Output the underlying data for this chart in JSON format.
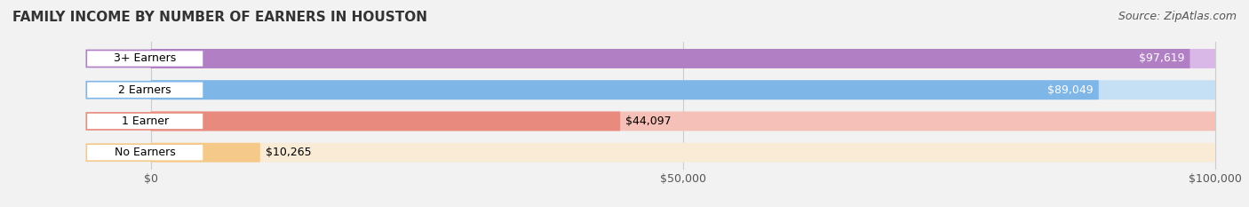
{
  "title": "FAMILY INCOME BY NUMBER OF EARNERS IN HOUSTON",
  "source": "Source: ZipAtlas.com",
  "categories": [
    "No Earners",
    "1 Earner",
    "2 Earners",
    "3+ Earners"
  ],
  "values": [
    10265,
    44097,
    89049,
    97619
  ],
  "labels": [
    "$10,265",
    "$44,097",
    "$89,049",
    "$97,619"
  ],
  "bar_colors": [
    "#f5c98a",
    "#e88a7d",
    "#7eb6e8",
    "#b07fc4"
  ],
  "bar_bg_colors": [
    "#faebd7",
    "#f5c0b8",
    "#c5dff5",
    "#d9b8e8"
  ],
  "xlim": [
    0,
    100000
  ],
  "xticks": [
    0,
    50000,
    100000
  ],
  "xticklabels": [
    "$0",
    "$50,000",
    "$100,000"
  ],
  "background_color": "#f2f2f2",
  "bar_bg_color": "#e8e8e8",
  "title_fontsize": 11,
  "source_fontsize": 9,
  "label_fontsize": 9,
  "tick_fontsize": 9
}
